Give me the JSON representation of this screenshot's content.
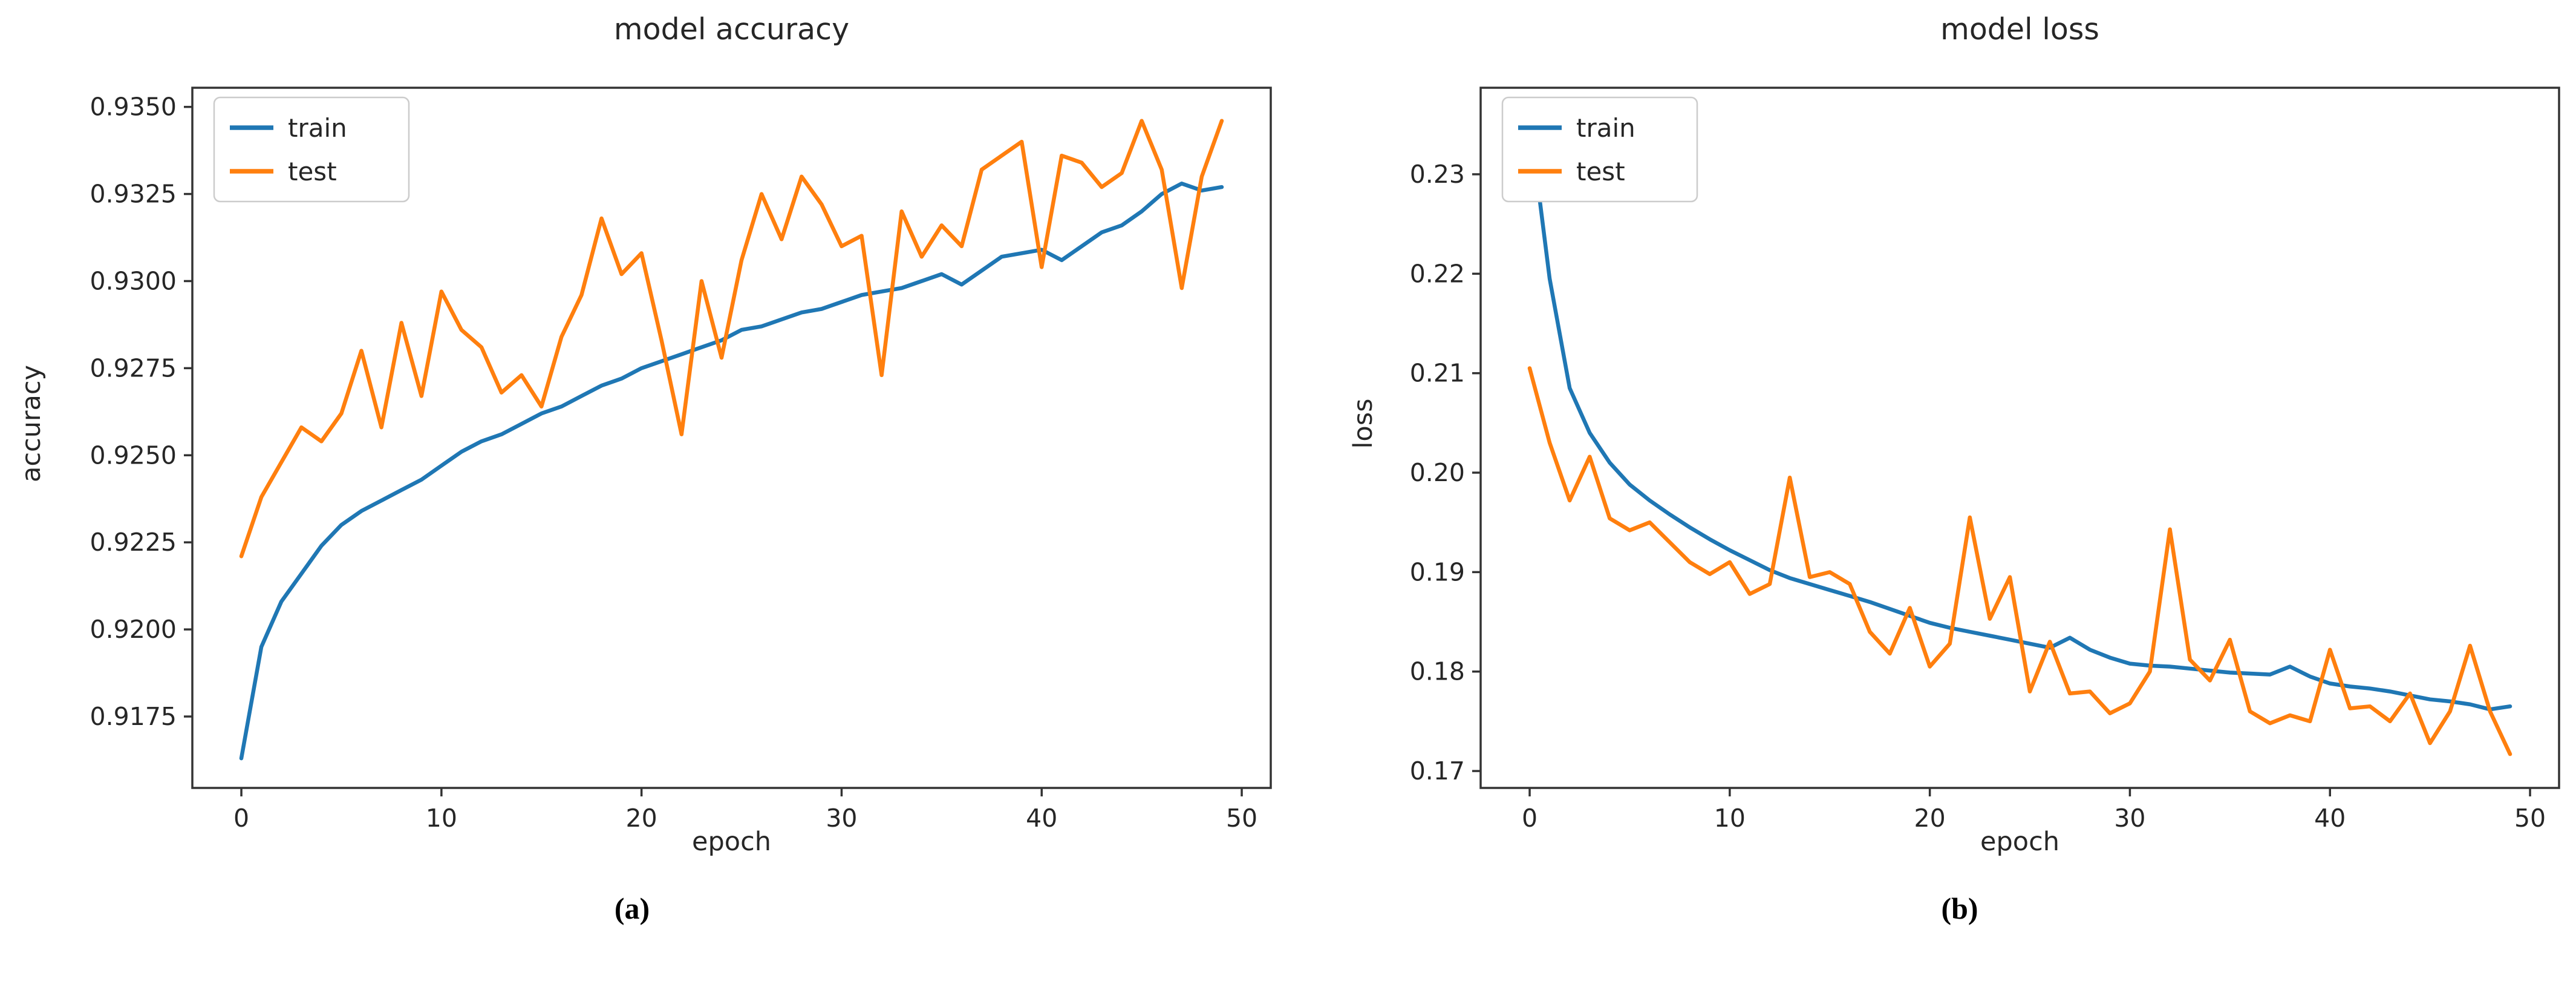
{
  "page": {
    "background": "#ffffff"
  },
  "colors": {
    "train": "#1f77b4",
    "test": "#ff7f0e",
    "axis": "#333333",
    "text": "#262626",
    "legend_border": "#cccccc",
    "legend_background": "#ffffff"
  },
  "figures": [
    {
      "caption": "(a)"
    },
    {
      "caption": "(b)"
    }
  ],
  "chart_data": [
    {
      "type": "line",
      "title": "model accuracy",
      "xlabel": "epoch",
      "ylabel": "accuracy",
      "grid": false,
      "legend": {
        "position": "upper left",
        "entries": [
          "train",
          "test"
        ]
      },
      "x_range": [
        0,
        49
      ],
      "xlim": [
        -2.45,
        51.45
      ],
      "ylim": [
        0.91545,
        0.93555
      ],
      "x_ticks": {
        "values": [
          0,
          10,
          20,
          30,
          40,
          50
        ],
        "labels": [
          "0",
          "10",
          "20",
          "30",
          "40",
          "50"
        ]
      },
      "y_ticks": {
        "values": [
          0.9175,
          0.92,
          0.9225,
          0.925,
          0.9275,
          0.93,
          0.9325,
          0.935
        ],
        "labels": [
          "0.9175",
          "0.9200",
          "0.9225",
          "0.9250",
          "0.9275",
          "0.9300",
          "0.9325",
          "0.9350"
        ]
      },
      "series": [
        {
          "name": "train",
          "color": "#1f77b4",
          "values": [
            0.9163,
            0.9195,
            0.9208,
            0.9216,
            0.9224,
            0.923,
            0.9234,
            0.9237,
            0.924,
            0.9243,
            0.9247,
            0.9251,
            0.9254,
            0.9256,
            0.9259,
            0.9262,
            0.9264,
            0.9267,
            0.927,
            0.9272,
            0.9275,
            0.9277,
            0.9279,
            0.9281,
            0.9283,
            0.9286,
            0.9287,
            0.9289,
            0.9291,
            0.9292,
            0.9294,
            0.9296,
            0.9297,
            0.9298,
            0.93,
            0.9302,
            0.9299,
            0.9303,
            0.9307,
            0.9308,
            0.9309,
            0.9306,
            0.931,
            0.9314,
            0.9316,
            0.932,
            0.9325,
            0.9328,
            0.9326,
            0.9327
          ]
        },
        {
          "name": "test",
          "color": "#ff7f0e",
          "values": [
            0.9221,
            0.9238,
            0.9248,
            0.9258,
            0.9254,
            0.9262,
            0.928,
            0.9258,
            0.9288,
            0.9267,
            0.9297,
            0.9286,
            0.9281,
            0.9268,
            0.9273,
            0.9264,
            0.9284,
            0.9296,
            0.9318,
            0.9302,
            0.9308,
            0.9283,
            0.9256,
            0.93,
            0.9278,
            0.9306,
            0.9325,
            0.9312,
            0.933,
            0.9322,
            0.931,
            0.9313,
            0.9273,
            0.932,
            0.9307,
            0.9316,
            0.931,
            0.9332,
            0.9336,
            0.934,
            0.9304,
            0.9336,
            0.9334,
            0.9327,
            0.9331,
            0.9346,
            0.9332,
            0.9298,
            0.933,
            0.9346
          ]
        }
      ]
    },
    {
      "type": "line",
      "title": "model loss",
      "xlabel": "epoch",
      "ylabel": "loss",
      "grid": false,
      "legend": {
        "position": "upper left",
        "entries": [
          "train",
          "test"
        ]
      },
      "x_range": [
        0,
        49
      ],
      "xlim": [
        -2.45,
        51.45
      ],
      "ylim": [
        0.1683,
        0.2387
      ],
      "x_ticks": {
        "values": [
          0,
          10,
          20,
          30,
          40,
          50
        ],
        "labels": [
          "0",
          "10",
          "20",
          "30",
          "40",
          "50"
        ]
      },
      "y_ticks": {
        "values": [
          0.17,
          0.18,
          0.19,
          0.2,
          0.21,
          0.22,
          0.23
        ],
        "labels": [
          "0.17",
          "0.18",
          "0.19",
          "0.20",
          "0.21",
          "0.22",
          "0.23"
        ]
      },
      "series": [
        {
          "name": "train",
          "color": "#1f77b4",
          "values": [
            0.2355,
            0.2195,
            0.2085,
            0.204,
            0.201,
            0.1988,
            0.1972,
            0.1958,
            0.1945,
            0.1933,
            0.1922,
            0.1912,
            0.1902,
            0.1894,
            0.1888,
            0.1882,
            0.1876,
            0.187,
            0.1863,
            0.1856,
            0.1849,
            0.1844,
            0.184,
            0.1836,
            0.1832,
            0.1828,
            0.1824,
            0.1834,
            0.1822,
            0.1814,
            0.1808,
            0.1806,
            0.1805,
            0.1803,
            0.1801,
            0.1799,
            0.1798,
            0.1797,
            0.1805,
            0.1795,
            0.1788,
            0.1785,
            0.1783,
            0.178,
            0.1776,
            0.1772,
            0.177,
            0.1767,
            0.1762,
            0.1765
          ]
        },
        {
          "name": "test",
          "color": "#ff7f0e",
          "values": [
            0.2105,
            0.203,
            0.1972,
            0.2016,
            0.1954,
            0.1942,
            0.195,
            0.193,
            0.191,
            0.1898,
            0.191,
            0.1878,
            0.1888,
            0.1995,
            0.1895,
            0.19,
            0.1888,
            0.184,
            0.1818,
            0.1864,
            0.1805,
            0.1828,
            0.1955,
            0.1853,
            0.1895,
            0.178,
            0.183,
            0.1778,
            0.178,
            0.1758,
            0.1768,
            0.18,
            0.1943,
            0.1812,
            0.1791,
            0.1832,
            0.176,
            0.1748,
            0.1756,
            0.175,
            0.1822,
            0.1763,
            0.1765,
            0.175,
            0.1778,
            0.1728,
            0.176,
            0.1826,
            0.176,
            0.1717
          ]
        }
      ]
    }
  ]
}
